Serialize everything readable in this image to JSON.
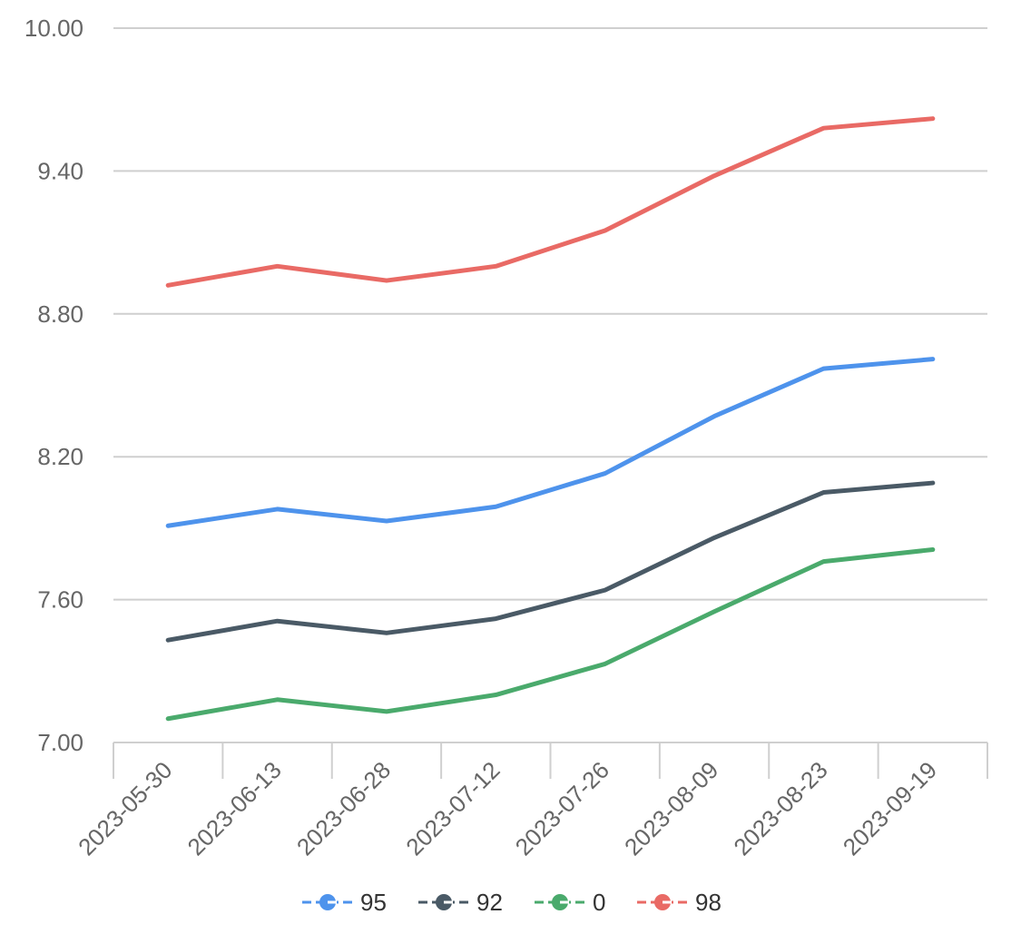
{
  "chart_data": {
    "type": "line",
    "title": "",
    "xlabel": "",
    "ylabel": "",
    "categories": [
      "2023-05-30",
      "2023-06-13",
      "2023-06-28",
      "2023-07-12",
      "2023-07-26",
      "2023-08-09",
      "2023-08-23",
      "2023-09-19"
    ],
    "y_ticks": [
      "7.00",
      "7.60",
      "8.20",
      "8.80",
      "9.40",
      "10.00"
    ],
    "ylim": [
      7.0,
      10.0
    ],
    "grid": true,
    "legend_position": "bottom",
    "series": [
      {
        "name": "95",
        "color": "#4e93ec",
        "values": [
          7.91,
          7.98,
          7.93,
          7.99,
          8.13,
          8.37,
          8.57,
          8.61
        ]
      },
      {
        "name": "92",
        "color": "#4a5a66",
        "values": [
          7.43,
          7.51,
          7.46,
          7.52,
          7.64,
          7.86,
          8.05,
          8.09
        ]
      },
      {
        "name": "0",
        "color": "#4aaa6c",
        "values": [
          7.1,
          7.18,
          7.13,
          7.2,
          7.33,
          7.55,
          7.76,
          7.81
        ]
      },
      {
        "name": "98",
        "color": "#e96a65",
        "values": [
          8.92,
          9.0,
          8.94,
          9.0,
          9.15,
          9.38,
          9.58,
          9.62
        ]
      }
    ]
  }
}
